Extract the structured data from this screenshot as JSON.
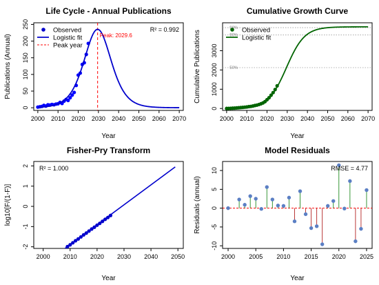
{
  "chart_data": [
    {
      "id": "lifecycle",
      "type": "scatter",
      "title": "Life Cycle - Annual Publications",
      "xlabel": "Year",
      "ylabel": "Publications (Annual)",
      "xlim": [
        1998,
        2072
      ],
      "ylim": [
        -8,
        255
      ],
      "xticks": [
        2000,
        2010,
        2020,
        2030,
        2040,
        2050,
        2060,
        2070
      ],
      "yticks": [
        0,
        50,
        100,
        150,
        200,
        250
      ],
      "annotation": "R² = 0.992",
      "peak": {
        "x": 2029.6,
        "label": "Peak: 2029.6",
        "color": "#ff0000"
      },
      "legend": {
        "position": "top-left",
        "entries": [
          {
            "label": "Observed",
            "kind": "point",
            "color": "#0000cc"
          },
          {
            "label": "Logistic fit",
            "kind": "line",
            "color": "#0000cc"
          },
          {
            "label": "Peak year",
            "kind": "dashed",
            "color": "#ff0000"
          }
        ]
      },
      "series": [
        {
          "name": "Observed",
          "kind": "points",
          "color": "#0000ff",
          "x": [
            2000,
            2001,
            2002,
            2003,
            2004,
            2005,
            2006,
            2007,
            2008,
            2009,
            2010,
            2011,
            2012,
            2013,
            2014,
            2015,
            2016,
            2017,
            2018,
            2019,
            2020,
            2021,
            2022,
            2023,
            2024,
            2025
          ],
          "y": [
            2,
            3,
            4,
            7,
            5,
            9,
            8,
            10,
            9,
            11,
            12,
            16,
            13,
            20,
            25,
            22,
            30,
            38,
            46,
            67,
            98,
            104,
            130,
            135,
            160,
            193
          ]
        },
        {
          "name": "Logistic fit",
          "kind": "curve",
          "color": "#0000cc",
          "model": {
            "K": 4240,
            "r": 0.222,
            "t0": 2029.6
          },
          "x_range": [
            2000,
            2070
          ]
        }
      ]
    },
    {
      "id": "cumulative",
      "type": "line",
      "title": "Cumulative Growth Curve",
      "xlabel": "Year",
      "ylabel": "Cumulative Publications",
      "xlim": [
        1998,
        2072
      ],
      "ylim": [
        -100,
        4450
      ],
      "xticks": [
        2000,
        2010,
        2020,
        2030,
        2040,
        2050,
        2060,
        2070
      ],
      "yticks": [
        0,
        1000,
        2000,
        3000
      ],
      "ref_lines": [
        {
          "y": 4197.6,
          "label": "99%"
        },
        {
          "y": 3816,
          "label": "90%"
        },
        {
          "y": 2120,
          "label": "50%"
        }
      ],
      "legend": {
        "position": "top-left",
        "entries": [
          {
            "label": "Observed",
            "kind": "point",
            "color": "#006400"
          },
          {
            "label": "Logistic fit",
            "kind": "line",
            "color": "#006400"
          }
        ]
      },
      "series": [
        {
          "name": "Observed",
          "kind": "points",
          "color": "#006400",
          "x": [
            2000,
            2001,
            2002,
            2003,
            2004,
            2005,
            2006,
            2007,
            2008,
            2009,
            2010,
            2011,
            2012,
            2013,
            2014,
            2015,
            2016,
            2017,
            2018,
            2019,
            2020,
            2021,
            2022,
            2023,
            2024,
            2025
          ],
          "y": [
            2,
            5,
            9,
            16,
            21,
            30,
            38,
            48,
            57,
            68,
            80,
            96,
            109,
            129,
            154,
            176,
            206,
            244,
            290,
            357,
            455,
            559,
            689,
            824,
            984,
            1177
          ]
        },
        {
          "name": "Logistic fit",
          "kind": "curve",
          "color": "#006400",
          "model": {
            "K": 4240,
            "r": 0.222,
            "t0": 2029.6
          },
          "x_range": [
            2000,
            2070
          ]
        }
      ]
    },
    {
      "id": "fisherpry",
      "type": "scatter",
      "title": "Fisher-Pry Transform",
      "xlabel": "Year",
      "ylabel": "log10[F/(1-F)]",
      "xlim": [
        1996.5,
        2052
      ],
      "ylim": [
        -2.08,
        2.22
      ],
      "xticks": [
        2000,
        2010,
        2020,
        2030,
        2040,
        2050
      ],
      "yticks": [
        -2,
        -1,
        0,
        1,
        2
      ],
      "annotation": "R² = 1.000",
      "series": [
        {
          "name": "Observed",
          "kind": "points",
          "color": "#0000cc",
          "x": [
            2009,
            2010,
            2011,
            2012,
            2013,
            2014,
            2015,
            2016,
            2017,
            2018,
            2019,
            2020,
            2021,
            2022,
            2023,
            2024,
            2025
          ],
          "y": [
            -1.99,
            -1.9,
            -1.8,
            -1.7,
            -1.61,
            -1.51,
            -1.41,
            -1.32,
            -1.22,
            -1.12,
            -1.03,
            -0.93,
            -0.84,
            -0.74,
            -0.64,
            -0.55,
            -0.45
          ]
        },
        {
          "name": "Fit",
          "kind": "line",
          "color": "#0000cc",
          "x": [
            2008,
            2049
          ],
          "y": [
            -2.09,
            1.95
          ]
        }
      ]
    },
    {
      "id": "residuals",
      "type": "scatter",
      "title": "Model Residuals",
      "xlabel": "Year",
      "ylabel": "Residuals (annual)",
      "xlim": [
        1999,
        2026
      ],
      "ylim": [
        -10.7,
        12.4
      ],
      "xticks": [
        2000,
        2005,
        2010,
        2015,
        2020,
        2025
      ],
      "yticks": [
        -10,
        -5,
        0,
        5,
        10
      ],
      "annotation": "RMSE = 4.77",
      "zero_line_color": "#ff0000",
      "series": [
        {
          "name": "Residuals",
          "kind": "stems",
          "color": "#5b7fc4",
          "x": [
            2000,
            2001,
            2002,
            2003,
            2004,
            2005,
            2006,
            2007,
            2008,
            2009,
            2010,
            2011,
            2012,
            2013,
            2014,
            2015,
            2016,
            2017,
            2018,
            2019,
            2020,
            2021,
            2022,
            2023,
            2024,
            2025
          ],
          "y": [
            0,
            null,
            2.3,
            0.9,
            3.2,
            2.5,
            -0.2,
            5.6,
            2.3,
            0.7,
            0.6,
            2.8,
            -3.5,
            4.5,
            -1.6,
            -5.3,
            -4.8,
            -9.6,
            0.6,
            1.9,
            11.4,
            -0.1,
            7.2,
            -8.8,
            -5.5,
            4.8
          ],
          "positive_stem_color": "#228b22",
          "negative_stem_color": "#b22222"
        }
      ]
    }
  ]
}
